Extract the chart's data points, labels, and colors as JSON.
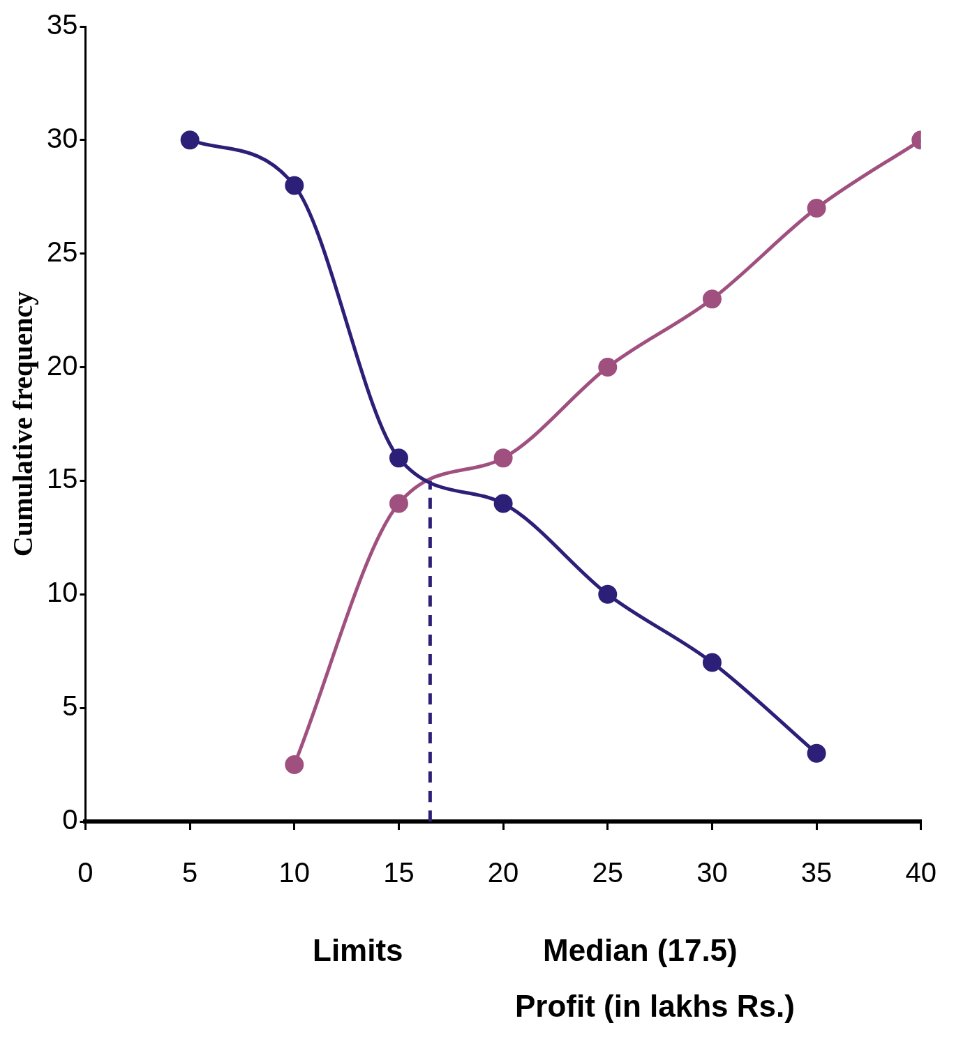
{
  "chart_data": {
    "type": "line",
    "xlabel": "Profit (in lakhs Rs.)",
    "ylabel": "Cumulative frequency",
    "annotations": [
      "Limits",
      "Median (17.5)"
    ],
    "xlim": [
      0,
      40
    ],
    "xticks": [
      0,
      5,
      10,
      15,
      20,
      25,
      30,
      35,
      40
    ],
    "ylim": [
      0,
      35
    ],
    "yticks": [
      0,
      5,
      10,
      15,
      20,
      25,
      30,
      35
    ],
    "grid": false,
    "legend": false,
    "marker": "circle",
    "series": [
      {
        "color": "#2b1f78",
        "x": [
          5,
          10,
          15,
          20,
          25,
          30,
          35
        ],
        "values": [
          30,
          28,
          16,
          14,
          10,
          7,
          3
        ]
      },
      {
        "color": "#a0507f",
        "x": [
          10,
          15,
          20,
          25,
          30,
          35,
          40
        ],
        "values": [
          2.5,
          14,
          16,
          20,
          23,
          27,
          30
        ]
      },
      {
        "color": "#2b1f78",
        "x": [
          16.5,
          16.5
        ],
        "values": [
          0,
          15
        ],
        "marker": "none",
        "line_style": "dashed"
      }
    ]
  }
}
